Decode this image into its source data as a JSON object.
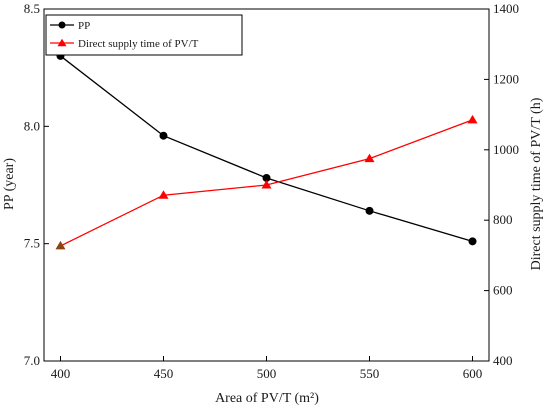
{
  "chart_data": {
    "type": "line",
    "x": [
      400,
      450,
      500,
      550,
      600
    ],
    "xlabel": "Area of PV/T (m²)",
    "ylabel_left": "PP (year)",
    "ylabel_right": "Direct supply time of PV/T (h)",
    "xlim": [
      392,
      608
    ],
    "ylim_left": [
      7.0,
      8.5
    ],
    "ylim_right": [
      400,
      1400
    ],
    "xticks": [
      400,
      450,
      500,
      550,
      600
    ],
    "yticks_left": [
      7.0,
      7.5,
      8.0,
      8.5
    ],
    "yticks_right": [
      400,
      600,
      800,
      1000,
      1200,
      1400
    ],
    "xtick_labels": [
      "400",
      "450",
      "500",
      "550",
      "600"
    ],
    "ytick_labels_left": [
      "7.0",
      "7.5",
      "8.0",
      "8.5"
    ],
    "ytick_labels_right": [
      "400",
      "600",
      "800",
      "1000",
      "1200",
      "1400"
    ],
    "grid": false,
    "legend_position": "top-left",
    "series": [
      {
        "name": "PP",
        "axis": "left",
        "marker": "circle",
        "color": "#000000",
        "values": [
          8.3,
          7.96,
          7.78,
          7.64,
          7.51
        ]
      },
      {
        "name": "Direct supply time of PV/T",
        "axis": "right",
        "marker": "triangle",
        "color": "#ff0000",
        "values": [
          727,
          871,
          900,
          975,
          1085
        ]
      }
    ]
  }
}
